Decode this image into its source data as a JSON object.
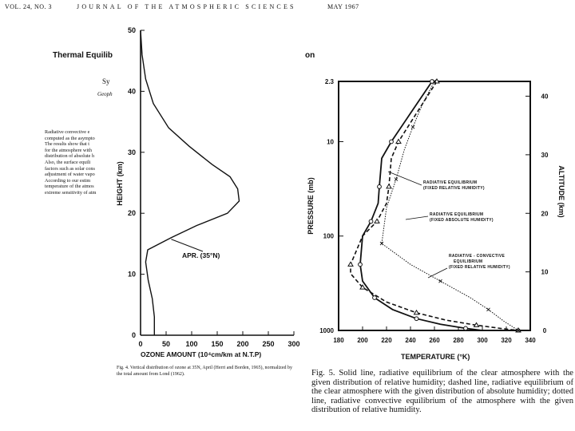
{
  "header": {
    "volume": "VOL. 24, NO. 3",
    "journal": "JOURNAL OF THE ATMOSPHERIC SCIENCES",
    "date": "MAY 1967"
  },
  "paper": {
    "title_fragment": "Thermal Equilib",
    "title_end": "on",
    "author_fragment": "Sy",
    "affiliation_fragment": "Geoph",
    "abstract_lines": [
      "Radiative convective e",
      "computed as the asympto",
      "The results show that t",
      "for the atmosphere with",
      "distribution of absolute h",
      "Also, the surface equili",
      "factors such as solar cons",
      "adjustment of water vapo",
      "According to our estim",
      "temperature of the atmos",
      "extreme sensitivity of atm"
    ]
  },
  "ozone_chart": {
    "ylabel": "HEIGHT (km)",
    "xlabel": "OZONE AMOUNT (10⁴cm/km at N.T.P)",
    "annotation": "APR. (35°N)",
    "caption": "Fig. 4. Vertical distribution of ozone at 35N, April (Herri and Borden, 1965), normalized by the total amount from Lond (1962)."
  },
  "temp_chart": {
    "ylabel_left": "PRESSURE (mb)",
    "ylabel_right": "ALTITUDE (km)",
    "xlabel": "TEMPERATURE (°K)",
    "annotations": {
      "rad_rel_1": "RADIATIVE EQUILIBRIUM",
      "rad_rel_2": "(FIXED RELATIVE HUMIDITY)",
      "rad_abs_1": "RADIATIVE EQUILIBRIUM",
      "rad_abs_2": "(FIXED ABSOLUTE HUMIDITY)",
      "conv_1": "RADIATIVE - CONVECTIVE",
      "conv_2": "EQUILIBRIUM",
      "conv_3": "(FIXED RELATIVE HUMIDITY)"
    },
    "caption": "Fig. 5. Solid line, radiative equilibrium of the clear atmosphere with the given distribution of relative humidity; dashed line, radiative equilibrium of the clear atmosphere with the given distribution of absolute humidity; dotted line, radiative convective equilibrium of the atmosphere with the given distribution of relative humidity."
  },
  "chart_data": [
    {
      "type": "line",
      "xlabel": "OZONE AMOUNT (10⁴cm/km at N.T.P)",
      "ylabel": "HEIGHT (km)",
      "xlim": [
        0,
        300
      ],
      "ylim": [
        0,
        50
      ],
      "xticks": [
        "0",
        "50",
        "100",
        "150",
        "200",
        "250",
        "300"
      ],
      "yticks": [
        "0",
        "10",
        "20",
        "30",
        "40",
        "50"
      ],
      "series": [
        {
          "name": "APR. (35°N)",
          "x": [
            27,
            27,
            23,
            15,
            10,
            14,
            60,
            110,
            170,
            193,
            190,
            175,
            140,
            95,
            55,
            25,
            10,
            3,
            0
          ],
          "y": [
            0,
            3,
            6,
            9,
            12,
            14,
            16,
            18,
            20,
            22,
            24,
            26,
            28,
            31,
            34,
            38,
            42,
            46,
            50
          ]
        }
      ]
    },
    {
      "type": "line",
      "xlabel": "TEMPERATURE (°K)",
      "ylabel": "PRESSURE (mb)",
      "y2label": "ALTITUDE (km)",
      "xlim": [
        180,
        340
      ],
      "ylim_pressure": [
        1000,
        2.3
      ],
      "yscale": "log",
      "xticks": [
        "180",
        "200",
        "220",
        "240",
        "260",
        "280",
        "300",
        "320",
        "340"
      ],
      "yticks_pressure": [
        "2.3",
        "10",
        "100",
        "1000"
      ],
      "yticks_altitude": [
        "0",
        "10",
        "20",
        "30",
        "40"
      ],
      "series": [
        {
          "name": "RADIATIVE EQUILIBRIUM (FIXED RELATIVE HUMIDITY)",
          "style": "solid",
          "x": [
            258,
            240,
            224,
            216,
            214,
            213,
            207,
            200,
            198,
            200,
            210,
            225,
            245,
            265,
            286,
            300
          ],
          "y": [
            2.3,
            5,
            10,
            15,
            30,
            45,
            70,
            100,
            200,
            300,
            450,
            600,
            750,
            860,
            950,
            1000
          ]
        },
        {
          "name": "RADIATIVE EQUILIBRIUM (FIXED ABSOLUTE HUMIDITY)",
          "style": "dashed",
          "x": [
            262,
            245,
            230,
            224,
            222,
            220,
            212,
            200,
            190,
            190,
            200,
            220,
            245,
            270,
            295,
            315,
            330
          ],
          "y": [
            2.3,
            5,
            10,
            15,
            30,
            45,
            70,
            100,
            200,
            250,
            350,
            500,
            650,
            780,
            880,
            950,
            1000
          ]
        },
        {
          "name": "RADIATIVE - CONVECTIVE EQUILIBRIUM (FIXED RELATIVE HUMIDITY)",
          "style": "dotted",
          "x": [
            260,
            250,
            242,
            235,
            228,
            220,
            216,
            240,
            265,
            290,
            305,
            318,
            330
          ],
          "y": [
            2.3,
            4,
            7,
            12,
            25,
            50,
            120,
            200,
            300,
            450,
            600,
            800,
            1000
          ]
        }
      ]
    }
  ]
}
